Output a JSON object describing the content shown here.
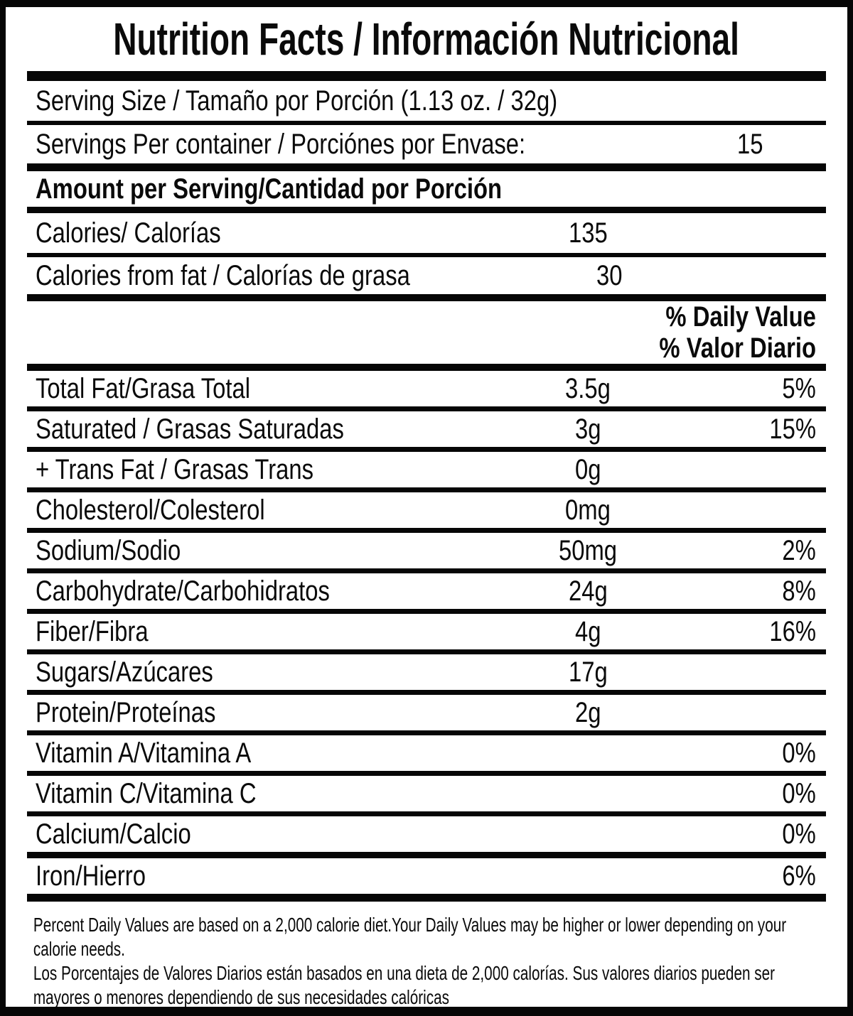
{
  "title": "Nutrition Facts / Información Nutricional",
  "serving": {
    "size_label": "Serving Size / Tamaño por Porción (1.13 oz. / 32g)",
    "per_container_label": "Servings Per container / Porciónes por Envase:",
    "per_container_value": "15"
  },
  "amount_header": "Amount per Serving/Cantidad por Porción",
  "calories": {
    "label": "Calories/ Calorías",
    "value": "135"
  },
  "calories_from_fat": {
    "label": "Calories from fat / Calorías de grasa",
    "value": "30"
  },
  "daily_value_header": {
    "en": "% Daily Value",
    "es": "% Valor Diario"
  },
  "nutrients": [
    {
      "label": "Total Fat/Grasa Total",
      "amount": "3.5g",
      "dv": "5%"
    },
    {
      "label": "Saturated / Grasas Saturadas",
      "amount": "3g",
      "dv": "15%"
    },
    {
      "label": "+ Trans Fat / Grasas Trans",
      "amount": "0g",
      "dv": ""
    },
    {
      "label": "Cholesterol/Colesterol",
      "amount": "0mg",
      "dv": ""
    },
    {
      "label": "Sodium/Sodio",
      "amount": "50mg",
      "dv": "2%"
    },
    {
      "label": "Carbohydrate/Carbohidratos",
      "amount": "24g",
      "dv": "8%"
    },
    {
      "label": "Fiber/Fibra",
      "amount": "4g",
      "dv": "16%"
    },
    {
      "label": "Sugars/Azúcares",
      "amount": "17g",
      "dv": ""
    },
    {
      "label": "Protein/Proteínas",
      "amount": "2g",
      "dv": ""
    },
    {
      "label": "Vitamin A/Vitamina A",
      "amount": "",
      "dv": "0%"
    },
    {
      "label": "Vitamin C/Vitamina C",
      "amount": "",
      "dv": "0%"
    },
    {
      "label": "Calcium/Calcio",
      "amount": "",
      "dv": "0%"
    },
    {
      "label": "Iron/Hierro",
      "amount": "",
      "dv": "6%"
    }
  ],
  "footnote": {
    "en": "Percent Daily Values are based on a 2,000 calorie diet.Your Daily Values may be higher or lower depending on your calorie needs.",
    "es": "Los Porcentajes de Valores Diarios están basados en una dieta de 2,000 calorías. Sus valores diarios pueden ser mayores o menores dependiendo de sus necesidades calóricas"
  },
  "colors": {
    "border": "#060606",
    "text": "#0a0a0a",
    "background": "#ffffff"
  }
}
